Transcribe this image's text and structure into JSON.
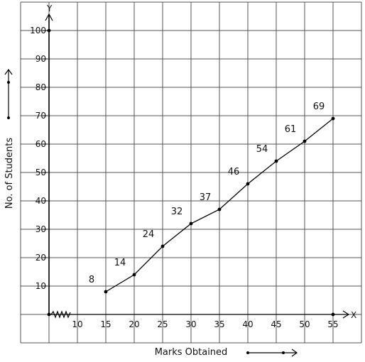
{
  "chart_data": {
    "type": "line",
    "xlabel": "Marks Obtained",
    "ylabel": "No. of Students",
    "x_axis_letter": "X",
    "y_axis_letter": "Y",
    "x_ticks": [
      "10",
      "15",
      "20",
      "25",
      "30",
      "35",
      "40",
      "45",
      "50",
      "55"
    ],
    "y_ticks": [
      "10",
      "20",
      "30",
      "40",
      "50",
      "60",
      "70",
      "80",
      "90",
      "100"
    ],
    "x": [
      15,
      20,
      25,
      30,
      35,
      40,
      45,
      50,
      55
    ],
    "values": [
      8,
      14,
      24,
      32,
      37,
      46,
      54,
      61,
      69
    ],
    "data_labels": [
      "8",
      "14",
      "24",
      "32",
      "37",
      "46",
      "54",
      "61",
      "69"
    ],
    "xlim": [
      5,
      60
    ],
    "ylim": [
      0,
      110
    ],
    "grid": true,
    "axis_break": "x",
    "line_color": "#000000"
  }
}
